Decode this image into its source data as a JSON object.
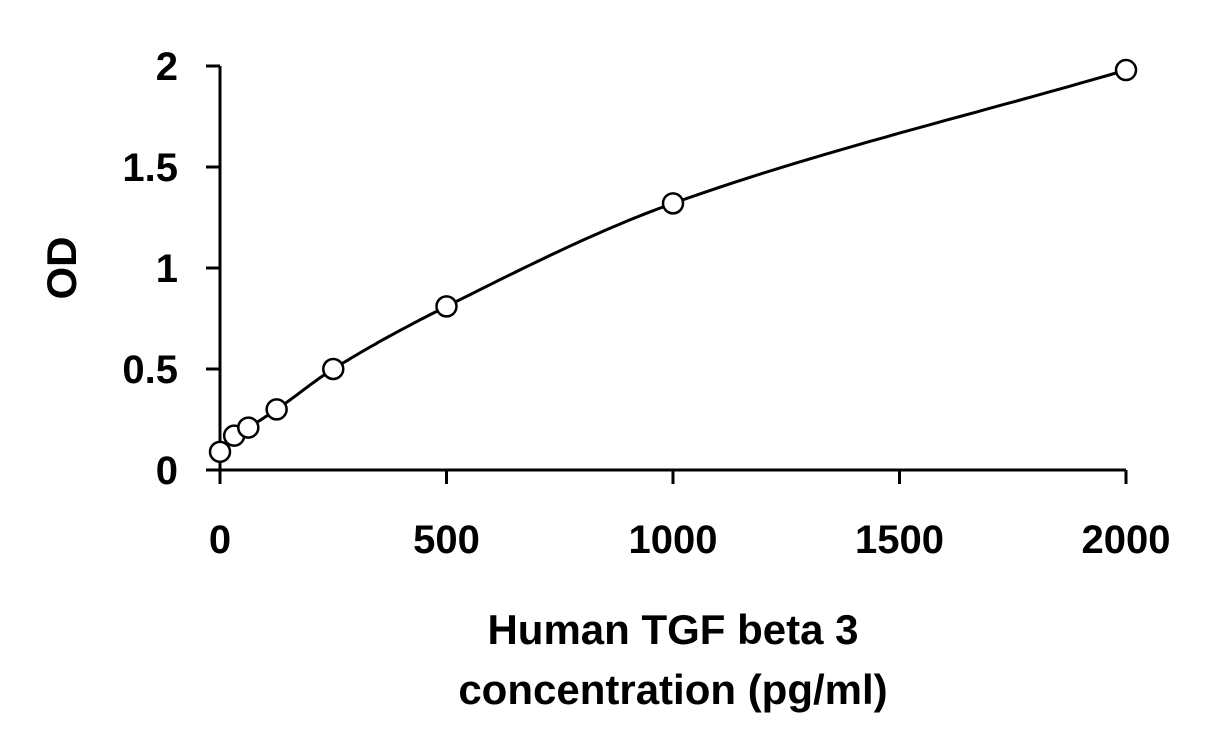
{
  "chart_data": {
    "type": "scatter",
    "title": "",
    "xlabel_lines": [
      "Human TGF beta 3",
      "concentration (pg/ml)"
    ],
    "ylabel": "OD",
    "xlim": [
      0,
      2000
    ],
    "ylim": [
      0,
      2
    ],
    "x_ticks": [
      0,
      500,
      1000,
      1500,
      2000
    ],
    "x_tick_labels": [
      "0",
      "500",
      "1000",
      "1500",
      "2000"
    ],
    "y_ticks": [
      0,
      0.5,
      1,
      1.5,
      2
    ],
    "y_tick_labels": [
      "0",
      "0.5",
      "1",
      "1.5",
      "2"
    ],
    "grid": false,
    "legend": "none",
    "series": [
      {
        "marker": "open-circle",
        "line": "fitted-curve",
        "color": "#000000",
        "x": [
          0,
          31.25,
          62.5,
          125,
          250,
          500,
          1000,
          2000
        ],
        "y": [
          0.09,
          0.17,
          0.21,
          0.3,
          0.5,
          0.81,
          1.32,
          1.98
        ]
      }
    ]
  }
}
